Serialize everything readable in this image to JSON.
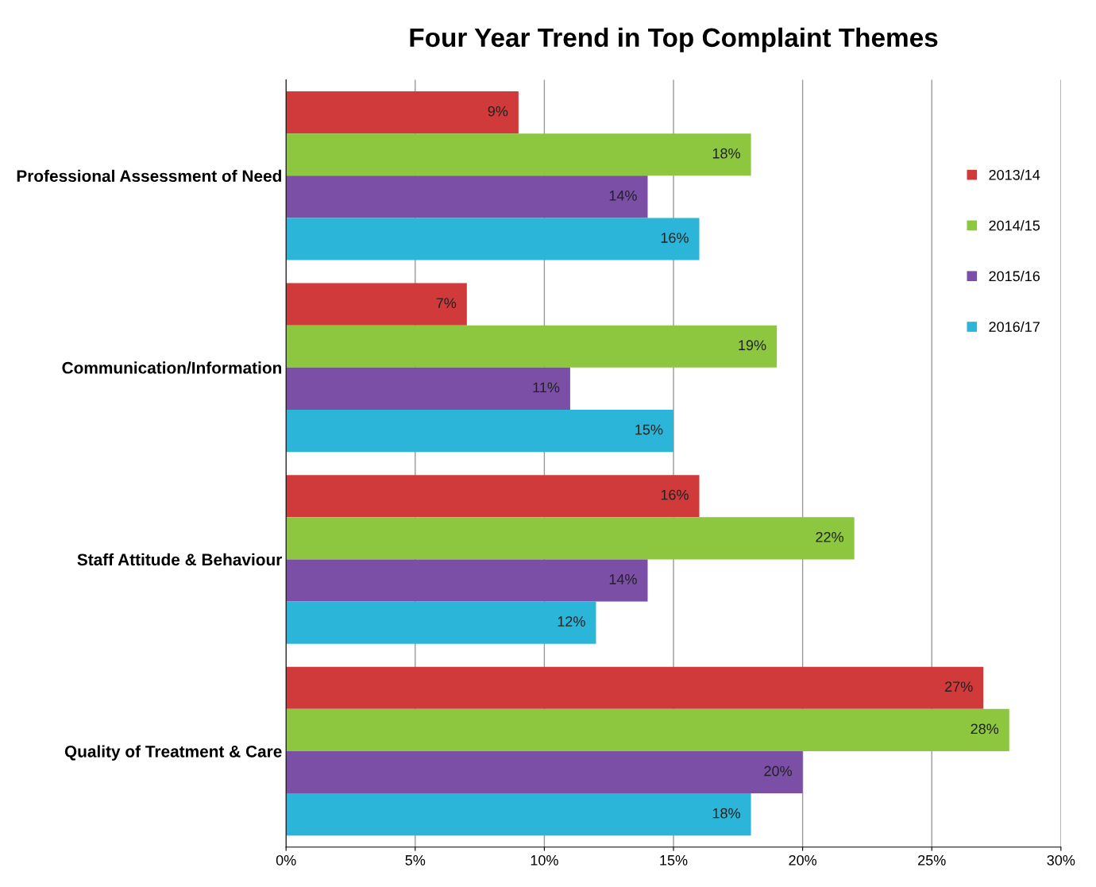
{
  "chart_data": {
    "type": "bar",
    "orientation": "horizontal",
    "title": "Four Year Trend in Top Complaint Themes",
    "categories": [
      "Professional Assessment of Need",
      "Communication/Information",
      "Staff Attitude & Behaviour",
      "Quality of Treatment & Care"
    ],
    "series": [
      {
        "name": "2013/14",
        "color": "#d03a3a",
        "values": [
          9,
          7,
          16,
          27
        ],
        "value_labels": [
          "9%",
          "7%",
          "16%",
          "27%"
        ]
      },
      {
        "name": "2014/15",
        "color": "#8dc63f",
        "values": [
          18,
          19,
          22,
          28
        ],
        "value_labels": [
          "18%",
          "19%",
          "22%",
          "28%"
        ]
      },
      {
        "name": "2015/16",
        "color": "#7b4fa6",
        "values": [
          14,
          11,
          14,
          20
        ],
        "value_labels": [
          "14%",
          "11%",
          "14%",
          "20%"
        ]
      },
      {
        "name": "2016/17",
        "color": "#2bb5d8",
        "values": [
          16,
          15,
          12,
          18
        ],
        "value_labels": [
          "16%",
          "15%",
          "12%",
          "18%"
        ]
      }
    ],
    "xlim": [
      0,
      30
    ],
    "xticks": [
      {
        "value": 0,
        "label": "0%"
      },
      {
        "value": 5,
        "label": "5%"
      },
      {
        "value": 10,
        "label": "10%"
      },
      {
        "value": 15,
        "label": "15%"
      },
      {
        "value": 20,
        "label": "20%"
      },
      {
        "value": 25,
        "label": "25%"
      },
      {
        "value": 30,
        "label": "30%"
      }
    ],
    "grid": "x",
    "legend": "top right"
  }
}
